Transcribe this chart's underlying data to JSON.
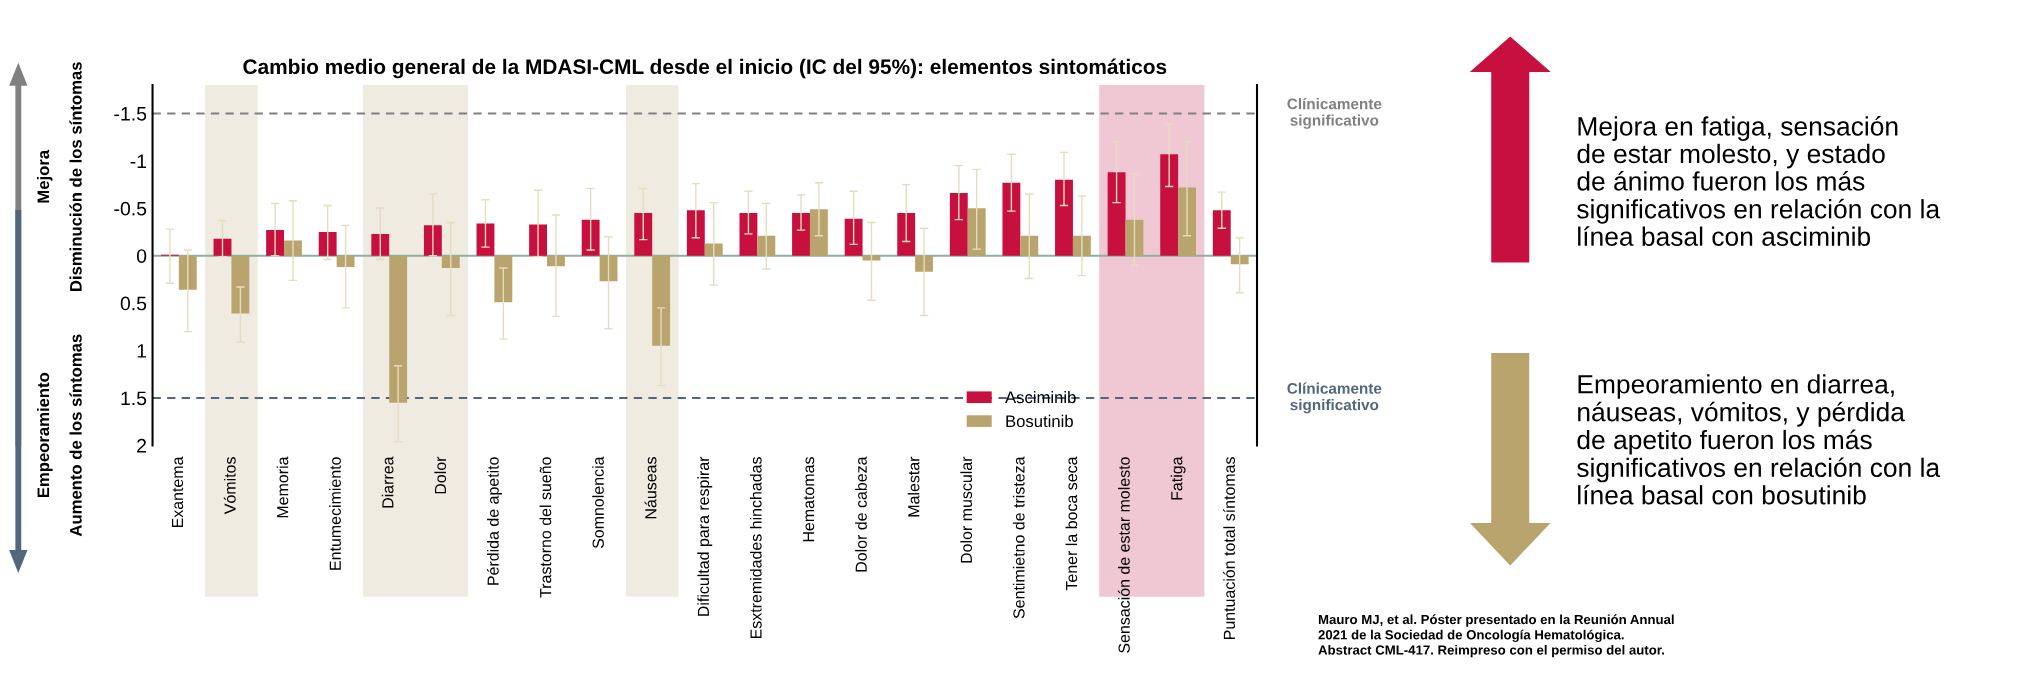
{
  "chart_data": {
    "type": "bar",
    "title": "Cambio medio general de la MDASI-CML desde el inicio (IC del 95%): elementos sintomáticos",
    "categories": [
      "Exantema",
      "Vómitos",
      "Memoria",
      "Entumecimiento",
      "Diarrea",
      "Dolor",
      "Pérdida de apetito",
      "Trastorno del sueño",
      "Somnolencia",
      "Náuseas",
      "Dificultad para respirar",
      "Esxtremidades hinchadas",
      "Hematomas",
      "Dolor de cabeza",
      "Malestar",
      "Dolor muscular",
      "Sentimietno de tristeza",
      "Tener la boca seca",
      "Sensación de estar molesto",
      "Fatiga",
      "Puntuación total síntomas"
    ],
    "series": [
      {
        "name": "Asciminib",
        "color": "#c8103e",
        "values": [
          -0.01,
          -0.18,
          -0.27,
          -0.25,
          -0.23,
          -0.32,
          -0.34,
          -0.33,
          -0.38,
          -0.45,
          -0.48,
          -0.45,
          -0.45,
          -0.39,
          -0.45,
          -0.66,
          -0.77,
          -0.8,
          -0.88,
          -1.07,
          -0.48
        ],
        "errors": [
          [
            -0.28,
            0.29
          ],
          [
            -0.37,
            0.01
          ],
          [
            -0.55,
            0.0
          ],
          [
            -0.53,
            0.04
          ],
          [
            -0.5,
            0.04
          ],
          [
            -0.65,
            0.0
          ],
          [
            -0.59,
            -0.09
          ],
          [
            -0.69,
            0.01
          ],
          [
            -0.71,
            -0.06
          ],
          [
            -0.71,
            -0.17
          ],
          [
            -0.76,
            -0.19
          ],
          [
            -0.68,
            -0.23
          ],
          [
            -0.64,
            -0.27
          ],
          [
            -0.68,
            -0.12
          ],
          [
            -0.75,
            -0.15
          ],
          [
            -0.95,
            -0.38
          ],
          [
            -1.07,
            -0.47
          ],
          [
            -1.09,
            -0.53
          ],
          [
            -1.2,
            -0.56
          ],
          [
            -1.39,
            -0.73
          ],
          [
            -0.67,
            -0.29
          ]
        ]
      },
      {
        "name": "Bosutinib",
        "color": "#b8a46c",
        "values": [
          0.36,
          0.61,
          -0.16,
          0.12,
          1.55,
          0.13,
          0.49,
          0.11,
          0.27,
          0.95,
          -0.13,
          -0.21,
          -0.49,
          0.05,
          0.17,
          -0.5,
          -0.21,
          -0.21,
          -0.38,
          -0.72,
          0.09
        ],
        "errors": [
          [
            -0.06,
            0.8
          ],
          [
            0.33,
            0.91
          ],
          [
            -0.58,
            0.26
          ],
          [
            -0.32,
            0.55
          ],
          [
            1.16,
            1.96
          ],
          [
            -0.35,
            0.63
          ],
          [
            0.13,
            0.88
          ],
          [
            -0.43,
            0.64
          ],
          [
            -0.2,
            0.77
          ],
          [
            0.55,
            1.37
          ],
          [
            -0.56,
            0.31
          ],
          [
            -0.55,
            0.14
          ],
          [
            -0.77,
            -0.21
          ],
          [
            -0.35,
            0.47
          ],
          [
            -0.29,
            0.63
          ],
          [
            -0.91,
            -0.07
          ],
          [
            -0.65,
            0.24
          ],
          [
            -0.63,
            0.21
          ],
          [
            -0.86,
            0.1
          ],
          [
            -1.2,
            -0.21
          ],
          [
            -0.19,
            0.39
          ]
        ]
      }
    ],
    "ylim": [
      2,
      -1.8
    ],
    "yticks": [
      -1.5,
      -1,
      -0.5,
      0,
      0.5,
      1,
      1.5,
      2
    ],
    "ref_lines": [
      {
        "axis": "y",
        "value": -1.5,
        "label": "Clínicamente\nsignificativo",
        "color": "#808080",
        "line_style": "dashed"
      },
      {
        "axis": "y",
        "value": 1.5,
        "label": "Clínicamente\nsignificativo",
        "color": "#52677d",
        "line_style": "dashed"
      },
      {
        "axis": "y",
        "value": 0,
        "color": "#8fb0a0",
        "line_style": "solid"
      }
    ],
    "bands": [
      {
        "axis": "x",
        "from": "Vómitos",
        "to": "Vómitos",
        "color": "#efebe1"
      },
      {
        "axis": "x",
        "from": "Diarrea",
        "to": "Dolor",
        "color": "#efebe1"
      },
      {
        "axis": "x",
        "from": "Náuseas",
        "to": "Náuseas",
        "color": "#efebe1"
      },
      {
        "axis": "x",
        "from": "Sensación de estar molesto",
        "to": "Fatiga",
        "color": "#f0c8d4"
      }
    ],
    "annotations": [
      "Mejora",
      "Disminución de los síntomas",
      "Empeoramiento",
      "Aumento de los síntomas",
      "Mejora en fatiga, sensación\nde estar molesto, y estado\nde ánimo fueron los más\nsignificativos en relación con la\nlínea basal con asciminib",
      "Empeoramiento en diarrea,\nnáuseas, vómitos, y pérdida\nde apetito fueron los más\nsignificativos en relación con la\nlínea basal con bosutinib",
      "Mauro MJ, et al. Póster presentado en la Reunión Annual\n2021 de la Sociedad de Oncología Hematológica.\nAbstract CML-417. Reimpreso con el permiso del autor."
    ],
    "legend": "bottom right",
    "grid": false
  }
}
